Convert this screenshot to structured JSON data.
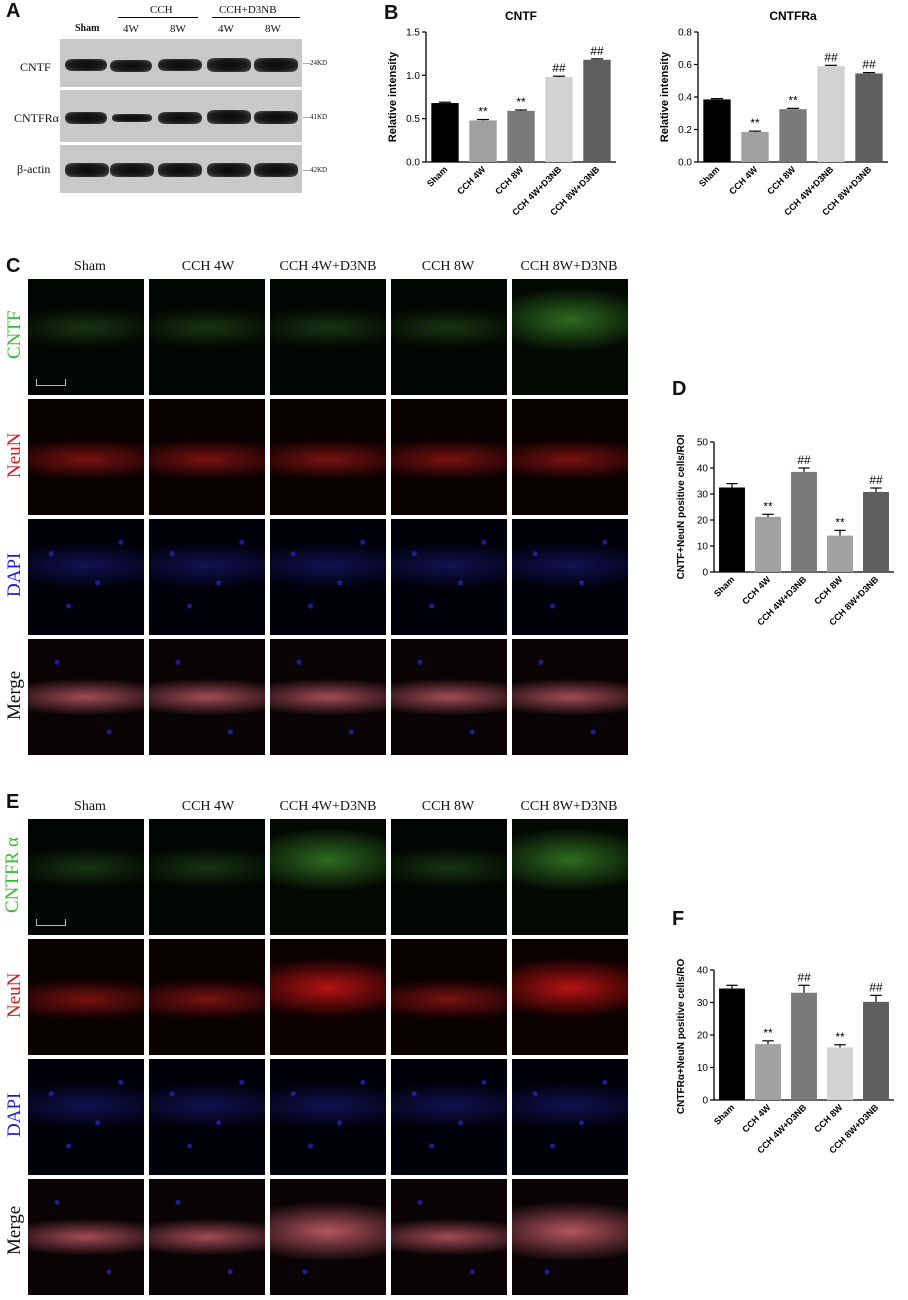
{
  "panels": {
    "A": "A",
    "B": "B",
    "C": "C",
    "D": "D",
    "E": "E",
    "F": "F"
  },
  "blot": {
    "groups": {
      "sham": "Sham",
      "cch": "CCH",
      "cchd": "CCH+D3NB"
    },
    "lanes": [
      "4W",
      "8W",
      "4W",
      "8W"
    ],
    "rows": [
      "CNTF",
      "CNTFRα",
      "β-actin"
    ],
    "kd": [
      "24KD",
      "41KD",
      "42KD"
    ]
  },
  "colors": {
    "sham": "#000000",
    "cch4w": "#a0a0a0",
    "cch8w": "#7a7a7a",
    "cch4wd": "#d2d2d2",
    "cch8wd": "#5e5e5e"
  },
  "chart_data": [
    {
      "type": "bar",
      "title": "CNTF",
      "ylabel": "Relative intensity",
      "ylim": [
        0,
        1.5
      ],
      "yticks": [
        "0.0",
        "0.5",
        "1.0",
        "1.5"
      ],
      "categories": [
        "Sham",
        "CCH 4W",
        "CCH 8W",
        "CCH 4W+D3NB",
        "CCH 8W+D3NB"
      ],
      "values": [
        0.68,
        0.48,
        0.59,
        0.98,
        1.18
      ],
      "errors": [
        0.01,
        0.01,
        0.01,
        0.01,
        0.01
      ],
      "annotations": [
        "",
        "**",
        "**",
        "##",
        "##"
      ]
    },
    {
      "type": "bar",
      "title": "CNTFRa",
      "ylabel": "Relative intensity",
      "ylim": [
        0,
        0.8
      ],
      "yticks": [
        "0.0",
        "0.2",
        "0.4",
        "0.6",
        "0.8"
      ],
      "categories": [
        "Sham",
        "CCH 4W",
        "CCH 8W",
        "CCH 4W+D3NB",
        "CCH 8W+D3NB"
      ],
      "values": [
        0.385,
        0.185,
        0.325,
        0.59,
        0.545
      ],
      "errors": [
        0.005,
        0.005,
        0.005,
        0.005,
        0.005
      ],
      "annotations": [
        "",
        "**",
        "**",
        "##",
        "##"
      ]
    },
    {
      "type": "bar",
      "title": "",
      "ylabel": "CNTF+NeuN positive cells/ROI",
      "ylim": [
        0,
        50
      ],
      "yticks": [
        "0",
        "10",
        "20",
        "30",
        "40",
        "50"
      ],
      "categories": [
        "Sham",
        "CCH 4W",
        "CCH 4W+D3NB",
        "CCH 8W",
        "CCH 8W+D3NB"
      ],
      "values": [
        32.5,
        21.2,
        38.5,
        14,
        30.8
      ],
      "errors": [
        1.5,
        1,
        1.5,
        2,
        1.5
      ],
      "annotations": [
        "",
        "**",
        "##",
        "**",
        "##"
      ]
    },
    {
      "type": "bar",
      "title": "",
      "ylabel": "CNTFRα+NeuN positive cells/ROI",
      "ylim": [
        0,
        40
      ],
      "yticks": [
        "0",
        "10",
        "20",
        "30",
        "40"
      ],
      "categories": [
        "Sham",
        "CCH 4W",
        "CCH 4W+D3NB",
        "CCH 8W",
        "CCH 8W+D3NB"
      ],
      "values": [
        34.3,
        17.2,
        33,
        16.2,
        30.2
      ],
      "errors": [
        1,
        1,
        2.3,
        0.8,
        2
      ],
      "annotations": [
        "",
        "**",
        "##",
        "**",
        "##"
      ]
    }
  ],
  "micro": {
    "columns": [
      "Sham",
      "CCH 4W",
      "CCH 4W+D3NB",
      "CCH 8W",
      "CCH 8W+D3NB"
    ],
    "rowsC": [
      "CNTF",
      "NeuN",
      "DAPI",
      "Merge"
    ],
    "rowsE": [
      "CNTFR α",
      "NeuN",
      "DAPI",
      "Merge"
    ]
  }
}
